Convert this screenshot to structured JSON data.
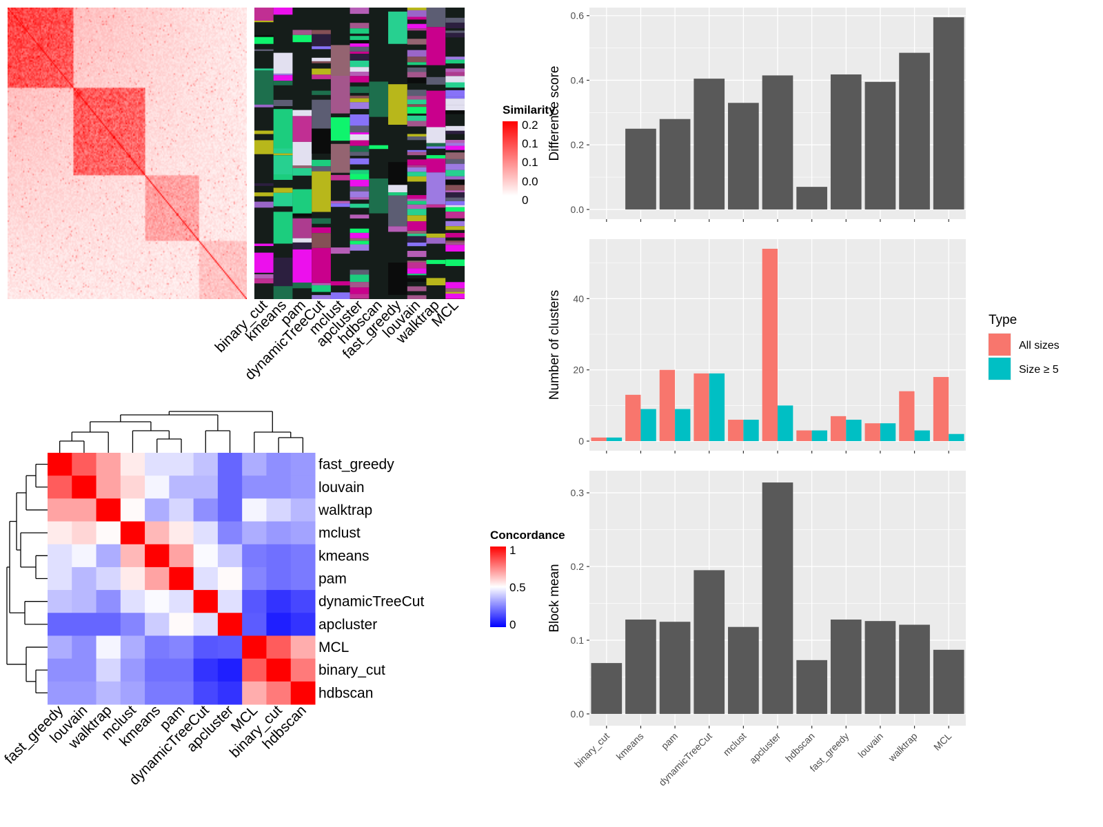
{
  "chart_data": [
    {
      "type": "heatmap",
      "panel": "similarity-heatmap",
      "legend_title": "Similarity",
      "legend_ticks": [
        "0.2",
        "0.1",
        "0.1",
        "0.0",
        "0"
      ],
      "colors": {
        "low": "#ffffff",
        "high": "#ff0000"
      },
      "dim": 200
    },
    {
      "type": "heatmap",
      "panel": "cluster-assignment-bars",
      "columns": [
        "binary_cut",
        "kmeans",
        "pam",
        "dynamicTreeCut",
        "mclust",
        "apcluster",
        "hdbscan",
        "fast_greedy",
        "louvain",
        "walktrap",
        "MCL"
      ],
      "background": "#151d1a",
      "palette": [
        "#9a66c8",
        "#946471",
        "#b8b71b",
        "#0ff46d",
        "#c12f93",
        "#ec10ed",
        "#9d7ae2",
        "#1ccd7e",
        "#27d090",
        "#a4568c",
        "#5c5d73",
        "#b55eb6",
        "#c9008c",
        "#2c1f3f",
        "#855056",
        "#e2e0f0",
        "#1d6f4d",
        "#8772f8",
        "#ad3c8f",
        "#0b0c0c"
      ]
    },
    {
      "type": "heatmap",
      "panel": "concordance-heatmap",
      "legend_title": "Concordance",
      "legend_ticks": [
        "1",
        "0.5",
        "0"
      ],
      "colors": {
        "low": "#0000ff",
        "mid": "#ffffff",
        "high": "#ff0000"
      },
      "rows": [
        "fast_greedy",
        "louvain",
        "walktrap",
        "mclust",
        "kmeans",
        "pam",
        "dynamicTreeCut",
        "apcluster",
        "MCL",
        "binary_cut",
        "hdbscan"
      ],
      "columns": [
        "fast_greedy",
        "louvain",
        "walktrap",
        "mclust",
        "kmeans",
        "pam",
        "dynamicTreeCut",
        "apcluster",
        "MCL",
        "binary_cut",
        "hdbscan"
      ],
      "values": [
        [
          1.0,
          0.82,
          0.68,
          0.54,
          0.44,
          0.44,
          0.38,
          0.2,
          0.34,
          0.28,
          0.3
        ],
        [
          0.82,
          1.0,
          0.68,
          0.58,
          0.48,
          0.36,
          0.36,
          0.2,
          0.28,
          0.28,
          0.3
        ],
        [
          0.68,
          0.68,
          1.0,
          0.51,
          0.34,
          0.42,
          0.28,
          0.2,
          0.48,
          0.42,
          0.36
        ],
        [
          0.54,
          0.58,
          0.51,
          1.0,
          0.64,
          0.54,
          0.44,
          0.26,
          0.34,
          0.3,
          0.32
        ],
        [
          0.44,
          0.48,
          0.34,
          0.64,
          1.0,
          0.68,
          0.49,
          0.4,
          0.24,
          0.22,
          0.24
        ],
        [
          0.44,
          0.36,
          0.42,
          0.54,
          0.68,
          1.0,
          0.44,
          0.51,
          0.26,
          0.22,
          0.24
        ],
        [
          0.38,
          0.36,
          0.28,
          0.44,
          0.49,
          0.44,
          1.0,
          0.44,
          0.17,
          0.1,
          0.14
        ],
        [
          0.2,
          0.2,
          0.2,
          0.26,
          0.4,
          0.51,
          0.44,
          1.0,
          0.18,
          0.06,
          0.1
        ],
        [
          0.34,
          0.28,
          0.48,
          0.34,
          0.24,
          0.26,
          0.17,
          0.18,
          1.0,
          0.82,
          0.66
        ],
        [
          0.28,
          0.28,
          0.42,
          0.3,
          0.22,
          0.22,
          0.1,
          0.06,
          0.82,
          1.0,
          0.76
        ],
        [
          0.3,
          0.3,
          0.36,
          0.32,
          0.24,
          0.24,
          0.14,
          0.1,
          0.66,
          0.76,
          1.0
        ]
      ]
    },
    {
      "type": "bar",
      "panel": "difference-score",
      "categories": [
        "binary_cut",
        "kmeans",
        "pam",
        "dynamicTreeCut",
        "mclust",
        "apcluster",
        "hdbscan",
        "fast_greedy",
        "louvain",
        "walktrap",
        "MCL"
      ],
      "values": [
        0.0,
        0.25,
        0.28,
        0.405,
        0.33,
        0.415,
        0.07,
        0.418,
        0.395,
        0.485,
        0.595
      ],
      "ylabel": "Difference score",
      "ylim": [
        -0.03,
        0.625
      ],
      "yticks": [
        "0.0",
        "0.2",
        "0.4",
        "0.6"
      ],
      "bar_color": "#595959",
      "grid": true
    },
    {
      "type": "bar",
      "panel": "number-of-clusters",
      "categories": [
        "binary_cut",
        "kmeans",
        "pam",
        "dynamicTreeCut",
        "mclust",
        "apcluster",
        "hdbscan",
        "fast_greedy",
        "louvain",
        "walktrap",
        "MCL"
      ],
      "series": [
        {
          "name": "All sizes",
          "color": "#f8766d",
          "values": [
            1,
            13,
            20,
            19,
            6,
            54,
            3,
            7,
            5,
            14,
            18
          ]
        },
        {
          "name": "Size ≥ 5",
          "color": "#00bfc4",
          "values": [
            1,
            9,
            9,
            19,
            6,
            10,
            3,
            6,
            5,
            3,
            2
          ]
        }
      ],
      "ylabel": "Number of clusters",
      "ylim": [
        -2.7,
        56.7
      ],
      "yticks": [
        "0",
        "20",
        "40"
      ],
      "legend_title": "Type",
      "legend_position": "right",
      "grid": true
    },
    {
      "type": "bar",
      "panel": "block-mean",
      "categories": [
        "binary_cut",
        "kmeans",
        "pam",
        "dynamicTreeCut",
        "mclust",
        "apcluster",
        "hdbscan",
        "fast_greedy",
        "louvain",
        "walktrap",
        "MCL"
      ],
      "values": [
        0.069,
        0.128,
        0.125,
        0.195,
        0.118,
        0.314,
        0.073,
        0.128,
        0.126,
        0.121,
        0.087
      ],
      "ylabel": "Block mean",
      "ylim": [
        -0.016,
        0.33
      ],
      "yticks": [
        "0.0",
        "0.1",
        "0.2",
        "0.3"
      ],
      "bar_color": "#595959",
      "grid": true
    }
  ]
}
